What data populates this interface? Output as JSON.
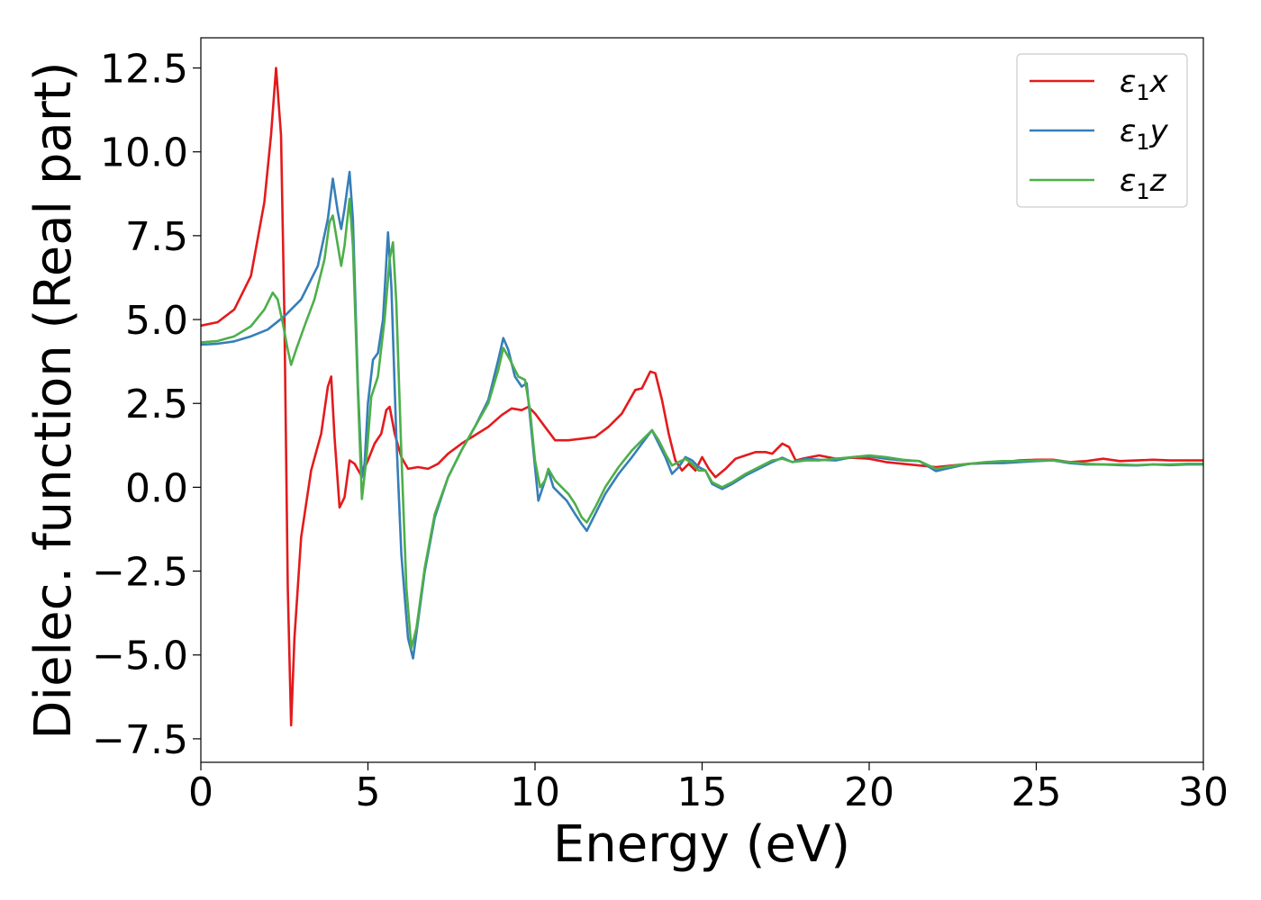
{
  "chart_data": {
    "type": "line",
    "title": "",
    "xlabel": "Energy (eV)",
    "ylabel": "Dielec. function (Real part)",
    "xlim": [
      0,
      30
    ],
    "ylim": [
      -8.2,
      13.4
    ],
    "xticks": [
      0,
      5,
      10,
      15,
      20,
      25,
      30
    ],
    "xtick_labels": [
      "0",
      "5",
      "10",
      "15",
      "20",
      "25",
      "30"
    ],
    "yticks": [
      -7.5,
      -5.0,
      -2.5,
      0.0,
      2.5,
      5.0,
      7.5,
      10.0,
      12.5
    ],
    "ytick_labels": [
      "−7.5",
      "−5.0",
      "−2.5",
      "0.0",
      "2.5",
      "5.0",
      "7.5",
      "10.0",
      "12.5"
    ],
    "grid": false,
    "legend_position": "top-right",
    "series": [
      {
        "name": "ε₁x",
        "legend_base": "ε",
        "legend_sub": "1",
        "legend_suffix": "x",
        "color": "#e41a1c",
        "points": [
          [
            0,
            4.82
          ],
          [
            0.5,
            4.92
          ],
          [
            1.0,
            5.3
          ],
          [
            1.5,
            6.3
          ],
          [
            1.9,
            8.5
          ],
          [
            2.1,
            10.5
          ],
          [
            2.25,
            12.5
          ],
          [
            2.4,
            10.5
          ],
          [
            2.5,
            5.0
          ],
          [
            2.6,
            -3.0
          ],
          [
            2.7,
            -7.1
          ],
          [
            2.8,
            -4.5
          ],
          [
            3.0,
            -1.5
          ],
          [
            3.3,
            0.5
          ],
          [
            3.6,
            1.6
          ],
          [
            3.8,
            3.0
          ],
          [
            3.9,
            3.3
          ],
          [
            4.0,
            1.5
          ],
          [
            4.15,
            -0.6
          ],
          [
            4.3,
            -0.3
          ],
          [
            4.45,
            0.8
          ],
          [
            4.6,
            0.7
          ],
          [
            4.8,
            0.35
          ],
          [
            5.0,
            0.8
          ],
          [
            5.2,
            1.3
          ],
          [
            5.4,
            1.6
          ],
          [
            5.55,
            2.3
          ],
          [
            5.65,
            2.4
          ],
          [
            5.8,
            1.6
          ],
          [
            6.0,
            0.9
          ],
          [
            6.2,
            0.55
          ],
          [
            6.5,
            0.6
          ],
          [
            6.8,
            0.55
          ],
          [
            7.1,
            0.7
          ],
          [
            7.4,
            1.0
          ],
          [
            7.8,
            1.3
          ],
          [
            8.2,
            1.55
          ],
          [
            8.6,
            1.8
          ],
          [
            9.0,
            2.15
          ],
          [
            9.3,
            2.35
          ],
          [
            9.6,
            2.3
          ],
          [
            9.8,
            2.4
          ],
          [
            10.0,
            2.2
          ],
          [
            10.3,
            1.8
          ],
          [
            10.6,
            1.4
          ],
          [
            11.0,
            1.4
          ],
          [
            11.4,
            1.45
          ],
          [
            11.8,
            1.5
          ],
          [
            12.2,
            1.8
          ],
          [
            12.6,
            2.2
          ],
          [
            13.0,
            2.9
          ],
          [
            13.2,
            2.95
          ],
          [
            13.45,
            3.45
          ],
          [
            13.6,
            3.4
          ],
          [
            13.8,
            2.6
          ],
          [
            14.0,
            1.6
          ],
          [
            14.2,
            0.8
          ],
          [
            14.4,
            0.5
          ],
          [
            14.6,
            0.7
          ],
          [
            14.8,
            0.5
          ],
          [
            15.0,
            0.9
          ],
          [
            15.2,
            0.55
          ],
          [
            15.4,
            0.3
          ],
          [
            15.7,
            0.55
          ],
          [
            16.0,
            0.85
          ],
          [
            16.3,
            0.95
          ],
          [
            16.6,
            1.05
          ],
          [
            16.9,
            1.05
          ],
          [
            17.1,
            1.0
          ],
          [
            17.4,
            1.3
          ],
          [
            17.6,
            1.2
          ],
          [
            17.8,
            0.8
          ],
          [
            18.0,
            0.85
          ],
          [
            18.5,
            0.95
          ],
          [
            19.0,
            0.85
          ],
          [
            19.5,
            0.88
          ],
          [
            20.0,
            0.85
          ],
          [
            20.5,
            0.75
          ],
          [
            21.0,
            0.7
          ],
          [
            21.5,
            0.65
          ],
          [
            22.0,
            0.6
          ],
          [
            22.5,
            0.65
          ],
          [
            23.0,
            0.7
          ],
          [
            23.5,
            0.72
          ],
          [
            24.0,
            0.75
          ],
          [
            24.5,
            0.8
          ],
          [
            25.0,
            0.82
          ],
          [
            25.5,
            0.82
          ],
          [
            26.0,
            0.75
          ],
          [
            26.5,
            0.78
          ],
          [
            27.0,
            0.85
          ],
          [
            27.5,
            0.78
          ],
          [
            28.0,
            0.8
          ],
          [
            28.5,
            0.82
          ],
          [
            29.0,
            0.8
          ],
          [
            29.5,
            0.8
          ],
          [
            30.0,
            0.8
          ]
        ]
      },
      {
        "name": "ε₁y",
        "legend_base": "ε",
        "legend_sub": "1",
        "legend_suffix": "y",
        "color": "#377eb8",
        "points": [
          [
            0,
            4.25
          ],
          [
            0.5,
            4.28
          ],
          [
            1.0,
            4.35
          ],
          [
            1.5,
            4.5
          ],
          [
            2.0,
            4.7
          ],
          [
            2.5,
            5.1
          ],
          [
            3.0,
            5.6
          ],
          [
            3.5,
            6.6
          ],
          [
            3.8,
            8.0
          ],
          [
            3.95,
            9.2
          ],
          [
            4.1,
            8.2
          ],
          [
            4.2,
            7.7
          ],
          [
            4.3,
            8.3
          ],
          [
            4.45,
            9.4
          ],
          [
            4.55,
            8.0
          ],
          [
            4.7,
            3.0
          ],
          [
            4.82,
            0.3
          ],
          [
            4.9,
            0.7
          ],
          [
            5.0,
            2.5
          ],
          [
            5.15,
            3.8
          ],
          [
            5.3,
            4.0
          ],
          [
            5.45,
            5.0
          ],
          [
            5.6,
            7.6
          ],
          [
            5.7,
            6.0
          ],
          [
            5.85,
            1.5
          ],
          [
            6.0,
            -2.0
          ],
          [
            6.2,
            -4.5
          ],
          [
            6.35,
            -5.1
          ],
          [
            6.5,
            -4.0
          ],
          [
            6.7,
            -2.5
          ],
          [
            7.0,
            -0.9
          ],
          [
            7.4,
            0.3
          ],
          [
            7.8,
            1.1
          ],
          [
            8.2,
            1.8
          ],
          [
            8.6,
            2.6
          ],
          [
            8.9,
            3.8
          ],
          [
            9.05,
            4.45
          ],
          [
            9.2,
            4.1
          ],
          [
            9.4,
            3.3
          ],
          [
            9.6,
            3.0
          ],
          [
            9.75,
            3.1
          ],
          [
            9.9,
            1.6
          ],
          [
            10.1,
            -0.4
          ],
          [
            10.3,
            0.2
          ],
          [
            10.4,
            0.5
          ],
          [
            10.55,
            0.0
          ],
          [
            10.75,
            -0.2
          ],
          [
            10.95,
            -0.4
          ],
          [
            11.2,
            -0.8
          ],
          [
            11.4,
            -1.1
          ],
          [
            11.55,
            -1.3
          ],
          [
            11.8,
            -0.8
          ],
          [
            12.1,
            -0.2
          ],
          [
            12.5,
            0.4
          ],
          [
            12.9,
            0.9
          ],
          [
            13.2,
            1.3
          ],
          [
            13.5,
            1.7
          ],
          [
            13.7,
            1.3
          ],
          [
            13.9,
            0.9
          ],
          [
            14.1,
            0.4
          ],
          [
            14.3,
            0.6
          ],
          [
            14.5,
            0.9
          ],
          [
            14.7,
            0.8
          ],
          [
            14.9,
            0.6
          ],
          [
            15.1,
            0.5
          ],
          [
            15.3,
            0.1
          ],
          [
            15.6,
            -0.05
          ],
          [
            15.9,
            0.1
          ],
          [
            16.3,
            0.35
          ],
          [
            16.7,
            0.55
          ],
          [
            17.1,
            0.75
          ],
          [
            17.4,
            0.88
          ],
          [
            17.7,
            0.75
          ],
          [
            18.1,
            0.85
          ],
          [
            18.5,
            0.82
          ],
          [
            19.0,
            0.8
          ],
          [
            19.5,
            0.9
          ],
          [
            20.0,
            0.92
          ],
          [
            20.5,
            0.85
          ],
          [
            21.0,
            0.8
          ],
          [
            21.5,
            0.78
          ],
          [
            22.0,
            0.48
          ],
          [
            22.3,
            0.55
          ],
          [
            22.6,
            0.62
          ],
          [
            23.0,
            0.7
          ],
          [
            23.5,
            0.72
          ],
          [
            24.0,
            0.72
          ],
          [
            24.5,
            0.75
          ],
          [
            25.0,
            0.78
          ],
          [
            25.5,
            0.8
          ],
          [
            26.0,
            0.72
          ],
          [
            26.5,
            0.68
          ],
          [
            27.0,
            0.68
          ],
          [
            27.5,
            0.66
          ],
          [
            28.0,
            0.65
          ],
          [
            28.5,
            0.68
          ],
          [
            29.0,
            0.66
          ],
          [
            29.5,
            0.68
          ],
          [
            30.0,
            0.68
          ]
        ]
      },
      {
        "name": "ε₁z",
        "legend_base": "ε",
        "legend_sub": "1",
        "legend_suffix": "z",
        "color": "#4daf4a",
        "points": [
          [
            0,
            4.32
          ],
          [
            0.5,
            4.36
          ],
          [
            1.0,
            4.5
          ],
          [
            1.5,
            4.8
          ],
          [
            1.9,
            5.3
          ],
          [
            2.15,
            5.8
          ],
          [
            2.3,
            5.6
          ],
          [
            2.45,
            4.9
          ],
          [
            2.6,
            4.1
          ],
          [
            2.7,
            3.65
          ],
          [
            2.85,
            4.1
          ],
          [
            3.1,
            4.8
          ],
          [
            3.4,
            5.6
          ],
          [
            3.7,
            6.8
          ],
          [
            3.85,
            7.9
          ],
          [
            3.95,
            8.1
          ],
          [
            4.1,
            7.2
          ],
          [
            4.2,
            6.6
          ],
          [
            4.3,
            7.2
          ],
          [
            4.45,
            8.6
          ],
          [
            4.55,
            7.2
          ],
          [
            4.7,
            2.8
          ],
          [
            4.82,
            -0.35
          ],
          [
            4.95,
            0.8
          ],
          [
            5.1,
            2.7
          ],
          [
            5.3,
            3.3
          ],
          [
            5.5,
            5.0
          ],
          [
            5.65,
            6.8
          ],
          [
            5.75,
            7.3
          ],
          [
            5.85,
            5.5
          ],
          [
            6.0,
            1.0
          ],
          [
            6.15,
            -3.0
          ],
          [
            6.3,
            -4.8
          ],
          [
            6.45,
            -4.2
          ],
          [
            6.7,
            -2.4
          ],
          [
            7.0,
            -0.8
          ],
          [
            7.4,
            0.3
          ],
          [
            7.8,
            1.1
          ],
          [
            8.2,
            1.8
          ],
          [
            8.6,
            2.5
          ],
          [
            8.9,
            3.5
          ],
          [
            9.05,
            4.15
          ],
          [
            9.25,
            3.8
          ],
          [
            9.5,
            3.3
          ],
          [
            9.7,
            3.2
          ],
          [
            9.85,
            2.3
          ],
          [
            10.0,
            0.8
          ],
          [
            10.15,
            0.0
          ],
          [
            10.3,
            0.2
          ],
          [
            10.4,
            0.55
          ],
          [
            10.6,
            0.2
          ],
          [
            10.8,
            0.0
          ],
          [
            11.0,
            -0.2
          ],
          [
            11.2,
            -0.5
          ],
          [
            11.4,
            -0.9
          ],
          [
            11.55,
            -1.05
          ],
          [
            11.8,
            -0.6
          ],
          [
            12.1,
            0.0
          ],
          [
            12.5,
            0.6
          ],
          [
            12.9,
            1.1
          ],
          [
            13.2,
            1.4
          ],
          [
            13.5,
            1.7
          ],
          [
            13.7,
            1.4
          ],
          [
            13.9,
            1.0
          ],
          [
            14.1,
            0.65
          ],
          [
            14.3,
            0.75
          ],
          [
            14.5,
            0.85
          ],
          [
            14.7,
            0.7
          ],
          [
            14.9,
            0.5
          ],
          [
            15.1,
            0.5
          ],
          [
            15.3,
            0.15
          ],
          [
            15.6,
            0.0
          ],
          [
            15.9,
            0.15
          ],
          [
            16.3,
            0.4
          ],
          [
            16.7,
            0.6
          ],
          [
            17.1,
            0.8
          ],
          [
            17.4,
            0.85
          ],
          [
            17.7,
            0.75
          ],
          [
            18.1,
            0.8
          ],
          [
            18.5,
            0.8
          ],
          [
            19.0,
            0.85
          ],
          [
            19.5,
            0.9
          ],
          [
            20.0,
            0.95
          ],
          [
            20.5,
            0.9
          ],
          [
            21.0,
            0.82
          ],
          [
            21.5,
            0.78
          ],
          [
            22.0,
            0.55
          ],
          [
            22.3,
            0.6
          ],
          [
            22.6,
            0.65
          ],
          [
            23.0,
            0.7
          ],
          [
            23.5,
            0.75
          ],
          [
            24.0,
            0.78
          ],
          [
            24.5,
            0.78
          ],
          [
            25.0,
            0.8
          ],
          [
            25.5,
            0.8
          ],
          [
            26.0,
            0.75
          ],
          [
            26.5,
            0.7
          ],
          [
            27.0,
            0.68
          ],
          [
            27.5,
            0.68
          ],
          [
            28.0,
            0.66
          ],
          [
            28.5,
            0.68
          ],
          [
            29.0,
            0.68
          ],
          [
            29.5,
            0.7
          ],
          [
            30.0,
            0.7
          ]
        ]
      }
    ]
  }
}
